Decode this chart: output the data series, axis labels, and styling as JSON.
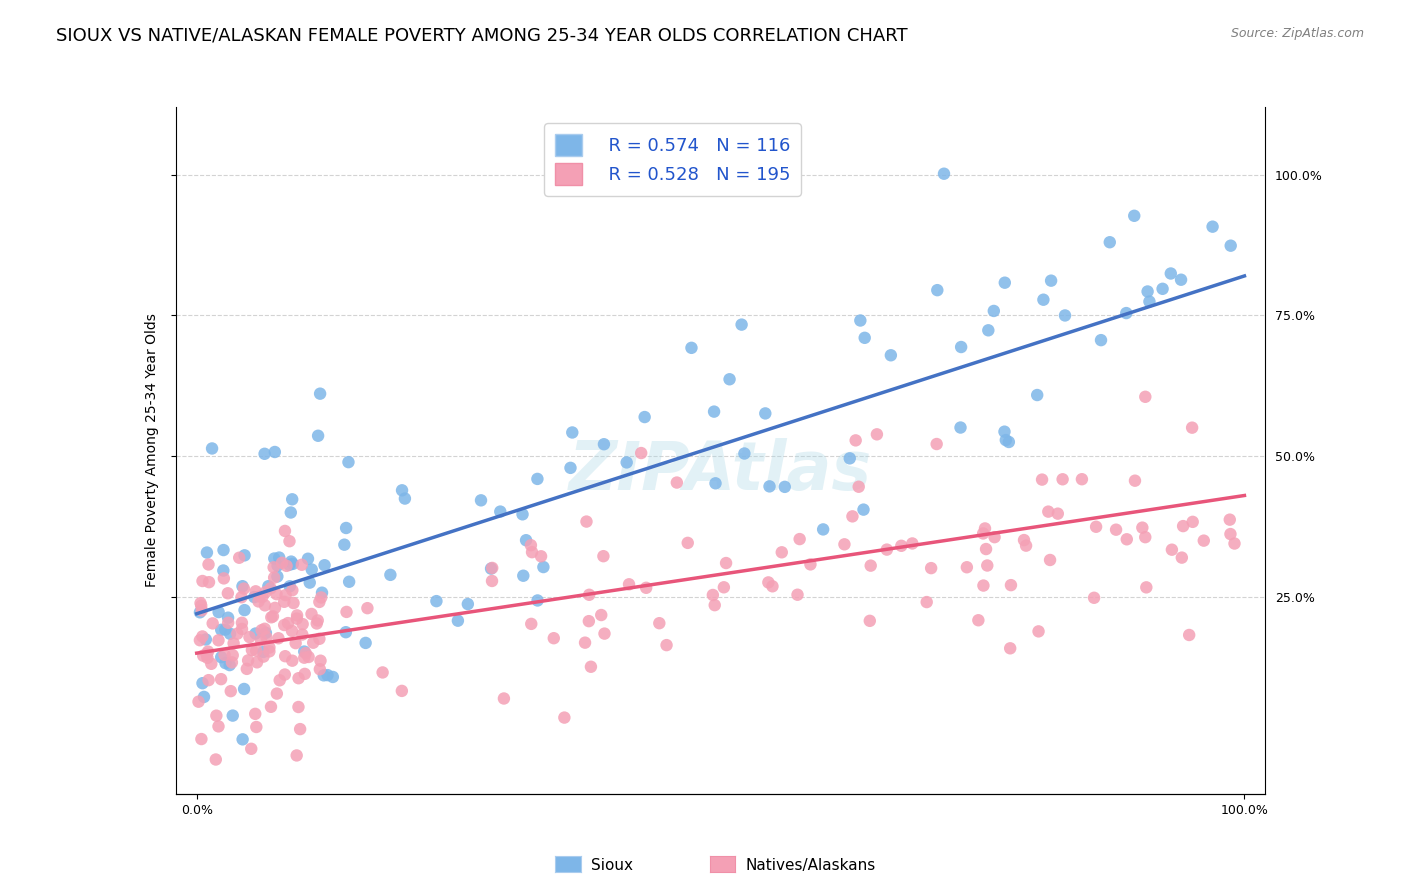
{
  "title": "SIOUX VS NATIVE/ALASKAN FEMALE POVERTY AMONG 25-34 YEAR OLDS CORRELATION CHART",
  "source": "Source: ZipAtlas.com",
  "ylabel": "Female Poverty Among 25-34 Year Olds",
  "sioux_R": 0.574,
  "sioux_N": 116,
  "native_R": 0.528,
  "native_N": 195,
  "sioux_color": "#7EB6E8",
  "native_color": "#F4A0B5",
  "sioux_line_color": "#4472C4",
  "native_line_color": "#E8557A",
  "background_color": "#FFFFFF",
  "legend_R_color": "#2255CC",
  "title_fontsize": 13,
  "axis_label_fontsize": 10,
  "tick_fontsize": 9,
  "sioux_intercept": 0.22,
  "sioux_slope": 0.6,
  "native_intercept": 0.15,
  "native_slope": 0.28
}
